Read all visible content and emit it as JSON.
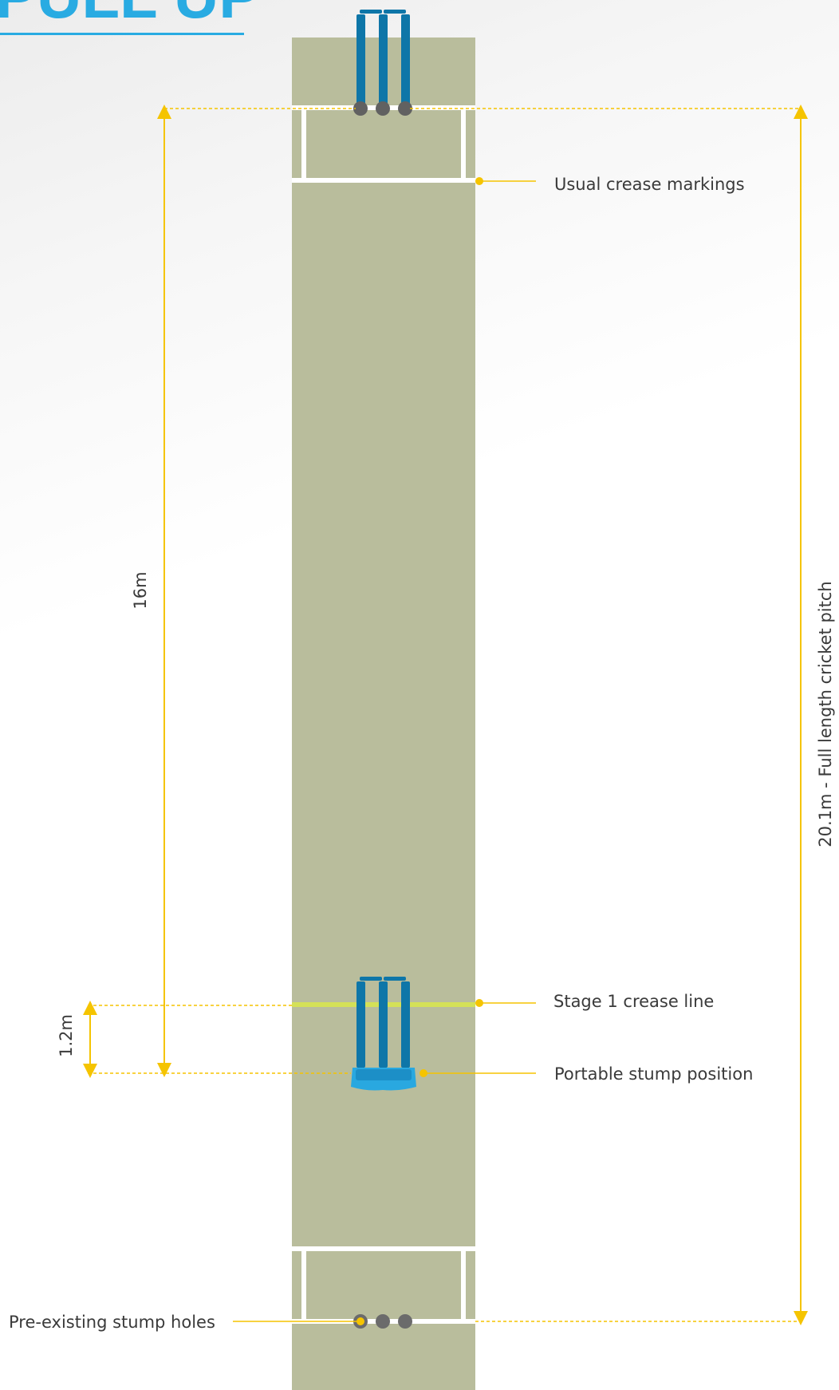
{
  "heading": "PULL UP",
  "labels": {
    "usual_crease": "Usual crease markings",
    "stage1_crease": "Stage 1 crease line",
    "portable_stump": "Portable stump position",
    "stump_holes": "Pre-existing stump holes"
  },
  "dimensions": {
    "distance_16": "16m",
    "distance_1_2": "1.2m",
    "full_length": "20.1m - Full length cricket pitch"
  },
  "colors": {
    "pitch": "#b9bd9c",
    "crease": "#ffffff",
    "stage1_line": "#d4e157",
    "stumps": "#0e76a8",
    "portable_base": "#29a8e0",
    "hole": "#6b6b6b",
    "dimension_line": "#f5c400",
    "heading": "#29abe2"
  },
  "icons": [
    "stumps-icon",
    "portable-stumps-icon",
    "stump-hole-icon"
  ]
}
